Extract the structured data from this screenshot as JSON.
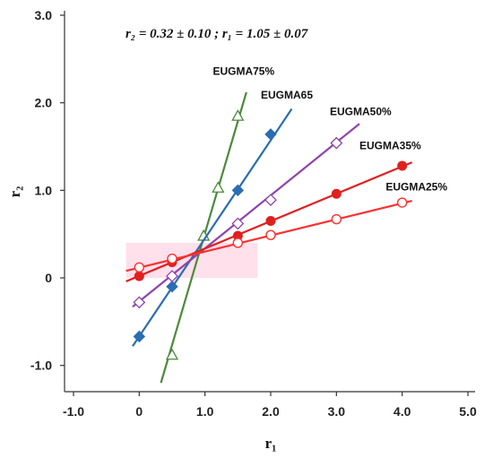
{
  "chart_data": {
    "type": "scatter",
    "annotation": "r₂ = 0.32 ± 0.10 ;   r₁ = 1.05 ± 0.07",
    "xlabel": "r₁",
    "ylabel": "r₂",
    "xlim": [
      -1.0,
      5.0
    ],
    "ylim": [
      -1.3,
      3.0
    ],
    "x_ticks": [
      -1.0,
      0,
      1.0,
      2.0,
      3.0,
      4.0,
      5.0
    ],
    "x_tick_labels": [
      "-1.0",
      "0",
      "1.0",
      "2.0",
      "3.0",
      "4.0",
      "5.0"
    ],
    "y_ticks": [
      -1.0,
      0,
      1.0,
      2.0,
      3.0
    ],
    "y_tick_labels": [
      "-1.0",
      "0",
      "1.0",
      "2.0",
      "3.0"
    ],
    "grid": false,
    "series": [
      {
        "name": "EUGMA75%",
        "color": "#4a8a3a",
        "marker": "triangle-open",
        "points": [
          [
            0.5,
            -0.88
          ],
          [
            0.98,
            0.48
          ],
          [
            1.2,
            1.03
          ],
          [
            1.5,
            1.85
          ]
        ],
        "line": [
          [
            0.33,
            -1.2
          ],
          [
            1.63,
            2.12
          ]
        ],
        "label_at": [
          1.12,
          2.32
        ]
      },
      {
        "name": "EUGMA65",
        "color": "#2a6db0",
        "marker": "diamond-filled",
        "points": [
          [
            0,
            -0.67
          ],
          [
            0.5,
            -0.1
          ],
          [
            1.5,
            1.0
          ],
          [
            2.0,
            1.64
          ]
        ],
        "line": [
          [
            -0.1,
            -0.78
          ],
          [
            2.32,
            1.93
          ]
        ],
        "label_at": [
          1.85,
          2.05
        ]
      },
      {
        "name": "EUGMA50%",
        "color": "#8e44ad",
        "marker": "diamond-open",
        "points": [
          [
            0,
            -0.28
          ],
          [
            0.5,
            0.02
          ],
          [
            1.5,
            0.62
          ],
          [
            2.0,
            0.89
          ],
          [
            3.0,
            1.54
          ]
        ],
        "line": [
          [
            -0.1,
            -0.33
          ],
          [
            3.35,
            1.76
          ]
        ],
        "label_at": [
          2.9,
          1.86
        ]
      },
      {
        "name": "EUGMA35%",
        "color": "#e02020",
        "marker": "circle-filled",
        "points": [
          [
            0,
            0.02
          ],
          [
            0.5,
            0.18
          ],
          [
            1.5,
            0.48
          ],
          [
            2.0,
            0.65
          ],
          [
            3.0,
            0.96
          ],
          [
            4.0,
            1.28
          ]
        ],
        "line": [
          [
            -0.2,
            -0.04
          ],
          [
            4.15,
            1.32
          ]
        ],
        "label_at": [
          3.35,
          1.47
        ]
      },
      {
        "name": "EUGMA25%",
        "color": "#ff3030",
        "marker": "circle-open",
        "points": [
          [
            0,
            0.12
          ],
          [
            0.5,
            0.22
          ],
          [
            1.5,
            0.4
          ],
          [
            2.0,
            0.49
          ],
          [
            3.0,
            0.67
          ],
          [
            4.0,
            0.86
          ]
        ],
        "line": [
          [
            -0.2,
            0.08
          ],
          [
            4.15,
            0.88
          ]
        ],
        "label_at": [
          3.75,
          1.0
        ]
      }
    ],
    "intersection_highlight": {
      "color": "#ff8fb8",
      "x_range": [
        -0.2,
        1.8
      ],
      "y_range": [
        0.0,
        0.4
      ]
    }
  }
}
